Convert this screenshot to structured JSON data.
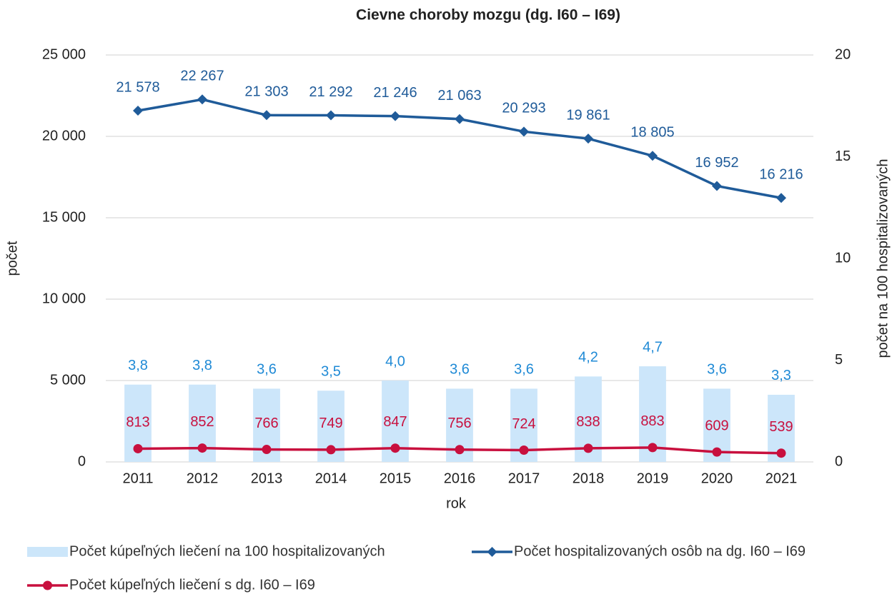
{
  "chart_data": {
    "type": "combo",
    "title": "Cievne choroby mozgu (dg. I60 – I69)",
    "x_label": "rok",
    "y_label": "počet",
    "y2_label": "počet na 100 hospitalizovaných",
    "categories": [
      "2011",
      "2012",
      "2013",
      "2014",
      "2015",
      "2016",
      "2017",
      "2018",
      "2019",
      "2020",
      "2021"
    ],
    "ylim": [
      0,
      25000
    ],
    "yticks": [
      0,
      {
        "value": 5000,
        "label": "5 000"
      },
      {
        "value": 10000,
        "label": "10 000"
      },
      {
        "value": 15000,
        "label": "15 000"
      },
      {
        "value": 20000,
        "label": "20 000"
      },
      {
        "value": 25000,
        "label": "25 000"
      }
    ],
    "y2lim": [
      0,
      20
    ],
    "y2ticks": [
      0,
      5,
      10,
      15,
      20
    ],
    "grid": true,
    "series": [
      {
        "name": "Počet kúpeľných liečení na 100 hospitalizovaných",
        "type": "bar",
        "axis": "y2",
        "color": "#cce6fa",
        "label_color": "#1f8ad6",
        "values": [
          3.8,
          3.8,
          3.6,
          3.5,
          4.0,
          3.6,
          3.6,
          4.2,
          4.7,
          3.6,
          3.3
        ],
        "value_labels": [
          "3,8",
          "3,8",
          "3,6",
          "3,5",
          "4,0",
          "3,6",
          "3,6",
          "4,2",
          "4,7",
          "3,6",
          "3,3"
        ]
      },
      {
        "name": "Počet hospitalizovaných osôb na dg. I60 – I69",
        "type": "line",
        "marker": "diamond",
        "color": "#1f5b99",
        "label_color": "#1f5b99",
        "values": [
          21578,
          22267,
          21303,
          21292,
          21246,
          21063,
          20293,
          19861,
          18805,
          16952,
          16216
        ],
        "value_labels": [
          "21 578",
          "22 267",
          "21 303",
          "21 292",
          "21 246",
          "21 063",
          "20 293",
          "19 861",
          "18 805",
          "16 952",
          "16 216"
        ]
      },
      {
        "name": "Počet kúpeľných liečení s dg. I60 – I69",
        "type": "line",
        "marker": "circle",
        "color": "#c8103e",
        "label_color": "#c8103e",
        "values": [
          813,
          852,
          766,
          749,
          847,
          756,
          724,
          838,
          883,
          609,
          539
        ]
      }
    ]
  }
}
